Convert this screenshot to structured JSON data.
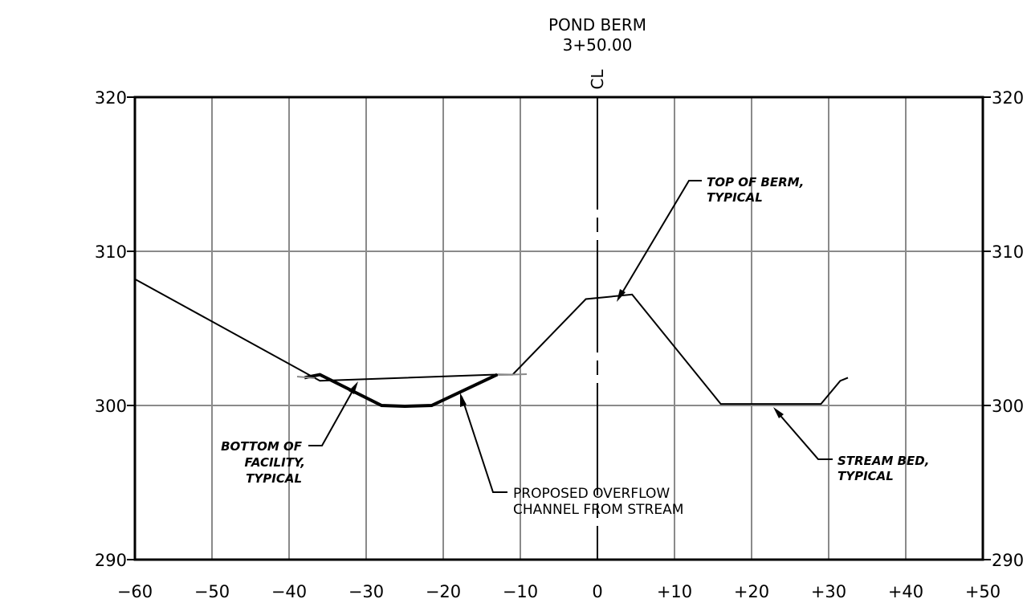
{
  "title": {
    "line1": "POND BERM",
    "line2": "3+50.00"
  },
  "centerline_label": "CL",
  "x_ticks": [
    "−60",
    "−50",
    "−40",
    "−30",
    "−20",
    "−10",
    "0",
    "+10",
    "+20",
    "+30",
    "+40",
    "+50"
  ],
  "y_ticks_left": [
    "320",
    "310",
    "300",
    "290"
  ],
  "y_ticks_right": [
    "320",
    "310",
    "300",
    "290"
  ],
  "annotations": {
    "top_of_berm": [
      "TOP OF BERM,",
      "TYPICAL"
    ],
    "bottom_of_facility": [
      "BOTTOM OF",
      "FACILITY,",
      "TYPICAL"
    ],
    "overflow_channel": [
      "PROPOSED OVERFLOW",
      "CHANNEL FROM STREAM"
    ],
    "stream_bed": [
      "STREAM BED,",
      "TYPICAL"
    ]
  },
  "chart_data": {
    "type": "line",
    "xlim": [
      -60,
      50
    ],
    "ylim": [
      290,
      320
    ],
    "grid": true,
    "series": [
      {
        "x": [
          -60,
          -36,
          -13.5,
          -11,
          -1.5,
          4.5,
          16,
          29,
          31.5,
          32.5
        ],
        "y": [
          308.2,
          301.6,
          302.0,
          302.0,
          306.9,
          307.2,
          300.1,
          300.1,
          301.6,
          301.8
        ]
      },
      {
        "x": [
          -38,
          -36,
          -28,
          -25,
          -21.5,
          -13
        ],
        "y": [
          301.8,
          302.0,
          300.0,
          299.95,
          300.0,
          302.0
        ]
      }
    ]
  }
}
